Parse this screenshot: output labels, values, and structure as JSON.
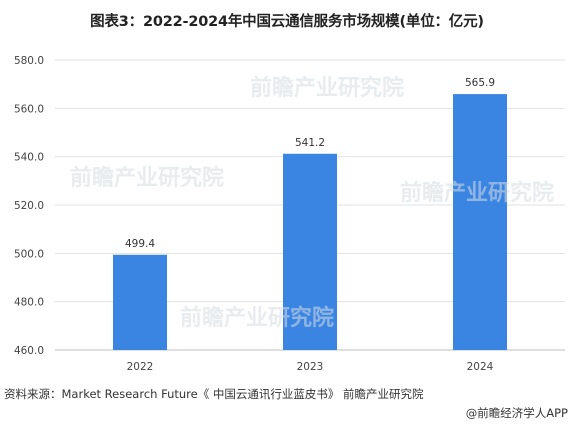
{
  "title": "图表3：2022-2024年中国云通信服务市场规模(单位：亿元)",
  "source": "资料来源：Market Research Future《 中国云通讯行业蓝皮书》 前瞻产业研究院",
  "credit": "@前瞻经济学人APP",
  "watermark": "前瞻产业研究院",
  "colors": {
    "bar": "#3a85e2",
    "grid": "#e2e2e2",
    "axis": "#bfbfbf"
  },
  "chart_data": {
    "type": "bar",
    "categories": [
      "2022",
      "2023",
      "2024"
    ],
    "values": [
      499.4,
      541.2,
      565.9
    ],
    "data_labels": [
      "499.4",
      "541.2",
      "565.9"
    ],
    "ylim": [
      460,
      580
    ],
    "yticks": [
      "460.0",
      "480.0",
      "500.0",
      "520.0",
      "540.0",
      "560.0",
      "580.0"
    ],
    "grid": true,
    "xlabel": "",
    "ylabel": ""
  }
}
